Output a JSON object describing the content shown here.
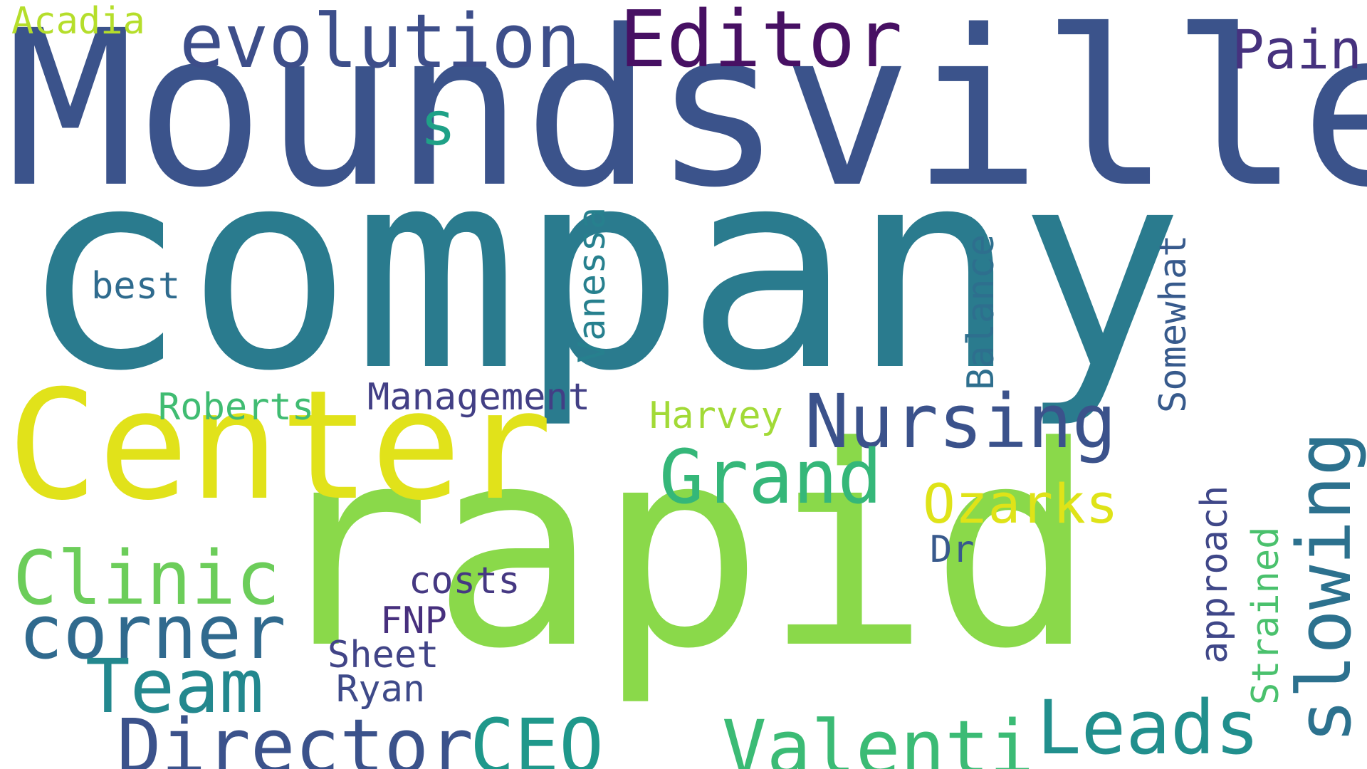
{
  "words": [
    {
      "id": "company",
      "text": "company",
      "color": "#2a7b8e"
    },
    {
      "id": "moundsville",
      "text": "Moundsville",
      "color": "#3b538b"
    },
    {
      "id": "rapid",
      "text": "rapid",
      "color": "#8ad94a"
    },
    {
      "id": "center",
      "text": "Center",
      "color": "#e1e21a"
    },
    {
      "id": "evolution",
      "text": "evolution",
      "color": "#3d4e8a"
    },
    {
      "id": "editor",
      "text": "Editor",
      "color": "#471063"
    },
    {
      "id": "pain",
      "text": "Pain",
      "color": "#46327e"
    },
    {
      "id": "acadia",
      "text": "Acadia",
      "color": "#b5de2b"
    },
    {
      "id": "s",
      "text": "s",
      "color": "#1fa187"
    },
    {
      "id": "nursing",
      "text": "Nursing",
      "color": "#3b528b"
    },
    {
      "id": "grand",
      "text": "Grand",
      "color": "#35b779"
    },
    {
      "id": "ozarks",
      "text": "Ozarks",
      "color": "#dfe318"
    },
    {
      "id": "clinic",
      "text": "Clinic",
      "color": "#6ccd5a"
    },
    {
      "id": "corner",
      "text": "corner",
      "color": "#306a8e"
    },
    {
      "id": "team",
      "text": "Team",
      "color": "#23888e"
    },
    {
      "id": "director",
      "text": "Director",
      "color": "#3b528b"
    },
    {
      "id": "ceo",
      "text": "CEO",
      "color": "#1f988b"
    },
    {
      "id": "valenti",
      "text": "Valenti",
      "color": "#3bbb75"
    },
    {
      "id": "leads",
      "text": "Leads",
      "color": "#218f8d"
    },
    {
      "id": "best",
      "text": "best",
      "color": "#2f6b8e"
    },
    {
      "id": "roberts",
      "text": "Roberts",
      "color": "#40bc72"
    },
    {
      "id": "management",
      "text": "Management",
      "color": "#423f85"
    },
    {
      "id": "harvey",
      "text": "Harvey",
      "color": "#a2da37"
    },
    {
      "id": "dr",
      "text": "Dr",
      "color": "#38598c"
    },
    {
      "id": "costs",
      "text": "costs",
      "color": "#453882"
    },
    {
      "id": "fnp",
      "text": "FNP",
      "color": "#472f7d"
    },
    {
      "id": "sheet",
      "text": "Sheet",
      "color": "#414487"
    },
    {
      "id": "ryan",
      "text": "Ryan",
      "color": "#3e4a89"
    },
    {
      "id": "vanessa",
      "text": "Vanessa",
      "color": "#27808e"
    },
    {
      "id": "balance",
      "text": "Balance",
      "color": "#2e6f8e"
    },
    {
      "id": "somewhat",
      "text": "Somewhat",
      "color": "#375a8c"
    },
    {
      "id": "slowing",
      "text": "slowing",
      "color": "#2c718e"
    },
    {
      "id": "approach",
      "text": "approach",
      "color": "#3f4788"
    },
    {
      "id": "strained",
      "text": "Strained",
      "color": "#4ac16d"
    }
  ]
}
